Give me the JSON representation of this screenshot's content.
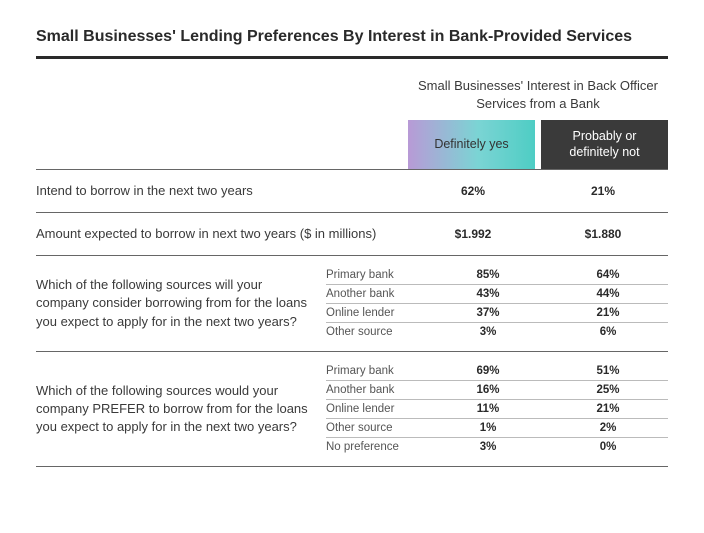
{
  "title": "Small Businesses' Lending Preferences By Interest in Bank-Provided Services",
  "superHeader": "Small Businesses' Interest in Back Officer Services from a Bank",
  "columns": {
    "yes": "Definitely yes",
    "no": "Probably or definitely not"
  },
  "colors": {
    "yes_gradient_start": "#b89ad6",
    "yes_gradient_mid": "#7bd4d4",
    "yes_gradient_end": "#4ecdc4",
    "no_bg": "#3a3a3a",
    "rule": "#2a2a2a",
    "subrule": "#bbbbbb"
  },
  "simple": [
    {
      "q": "Intend to borrow in the next two years",
      "yes": "62%",
      "no": "21%"
    },
    {
      "q": "Amount expected to borrow in next two years ($ in millions)",
      "yes": "$1.992",
      "no": "$1.880"
    }
  ],
  "group1": {
    "q": "Which of the following sources will your company consider borrowing from for the loans you expect to apply for in the next two years?",
    "rows": [
      {
        "label": "Primary bank",
        "yes": "85%",
        "no": "64%"
      },
      {
        "label": "Another bank",
        "yes": "43%",
        "no": "44%"
      },
      {
        "label": "Online lender",
        "yes": "37%",
        "no": "21%"
      },
      {
        "label": "Other source",
        "yes": "3%",
        "no": "6%"
      }
    ]
  },
  "group2": {
    "q": "Which of the following sources would your company PREFER to borrow from for the loans you expect to apply for in the next two years?",
    "rows": [
      {
        "label": "Primary bank",
        "yes": "69%",
        "no": "51%"
      },
      {
        "label": "Another bank",
        "yes": "16%",
        "no": "25%"
      },
      {
        "label": "Online lender",
        "yes": "11%",
        "no": "21%"
      },
      {
        "label": "Other source",
        "yes": "1%",
        "no": "2%"
      },
      {
        "label": "No preference",
        "yes": "3%",
        "no": "0%"
      }
    ]
  }
}
